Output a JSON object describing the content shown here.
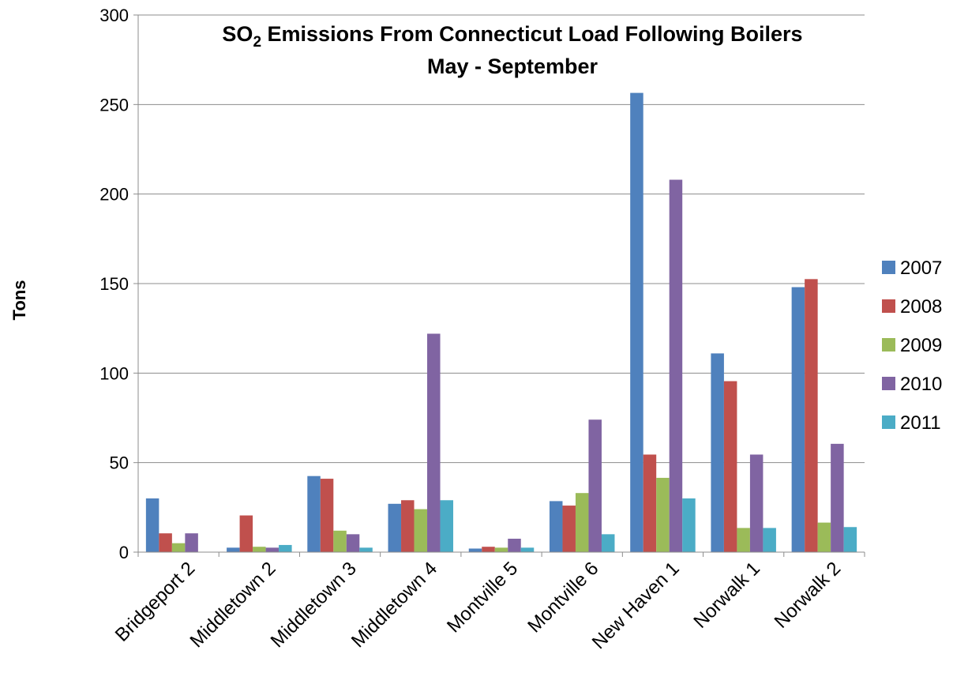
{
  "chart_data": {
    "type": "bar",
    "title_line1_main": "SO",
    "title_line1_sub": "2",
    "title_line1_rest": " Emissions From Connecticut Load Following Boilers",
    "title_line2": "May - September",
    "xlabel": "",
    "ylabel": "Tons",
    "ylim": [
      0,
      300
    ],
    "yticks": [
      "0",
      "50",
      "100",
      "150",
      "200",
      "250",
      "300"
    ],
    "grid": true,
    "legend_position": "right",
    "categories": [
      "Bridgeport 2",
      "Middletown 2",
      "Middletown 3",
      "Middletown 4",
      "Montville 5",
      "Montville 6",
      "New Haven 1",
      "Norwalk 1",
      "Norwalk 2"
    ],
    "series": [
      {
        "name": "2007",
        "color": "#4f81bd",
        "values": [
          30,
          2.5,
          42.5,
          27,
          2,
          28.5,
          256.5,
          111,
          148
        ]
      },
      {
        "name": "2008",
        "color": "#c0504d",
        "values": [
          10.5,
          20.5,
          41,
          29,
          3,
          26,
          54.5,
          95.5,
          152.5
        ]
      },
      {
        "name": "2009",
        "color": "#9bbb59",
        "values": [
          5,
          3,
          12,
          24,
          2.5,
          33,
          41.5,
          13.5,
          16.5
        ]
      },
      {
        "name": "2010",
        "color": "#8064a2",
        "values": [
          10.5,
          2.5,
          10,
          122,
          7.5,
          74,
          208,
          54.5,
          60.5
        ]
      },
      {
        "name": "2011",
        "color": "#4bacc6",
        "values": [
          0,
          4,
          2.5,
          29,
          2.5,
          10,
          30,
          13.5,
          14
        ]
      }
    ]
  }
}
